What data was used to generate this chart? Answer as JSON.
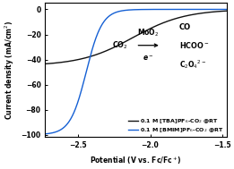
{
  "xlabel": "Potential (V vs. Fc/Fc$^+$)",
  "ylabel": "Current density (mA/cm$^2$)",
  "xlim": [
    -2.73,
    -1.47
  ],
  "ylim": [
    -102,
    5
  ],
  "xticks": [
    -2.5,
    -2.0,
    -1.5
  ],
  "yticks": [
    0,
    -20,
    -40,
    -60,
    -80,
    -100
  ],
  "line1_color": "#111111",
  "line2_color": "#1560d4",
  "legend1": "0.1 M [TBA]PF$_6$-CO$_2$ @RT",
  "legend2": "0.1 M [BMIM]PF$_6$-CO$_2$ @RT",
  "figsize": [
    2.61,
    1.89
  ],
  "dpi": 100,
  "black_max": -45,
  "black_midpoint": -2.12,
  "black_steepness": 5.5,
  "blue_max": -100,
  "blue_midpoint": -2.445,
  "blue_steepness": 18
}
